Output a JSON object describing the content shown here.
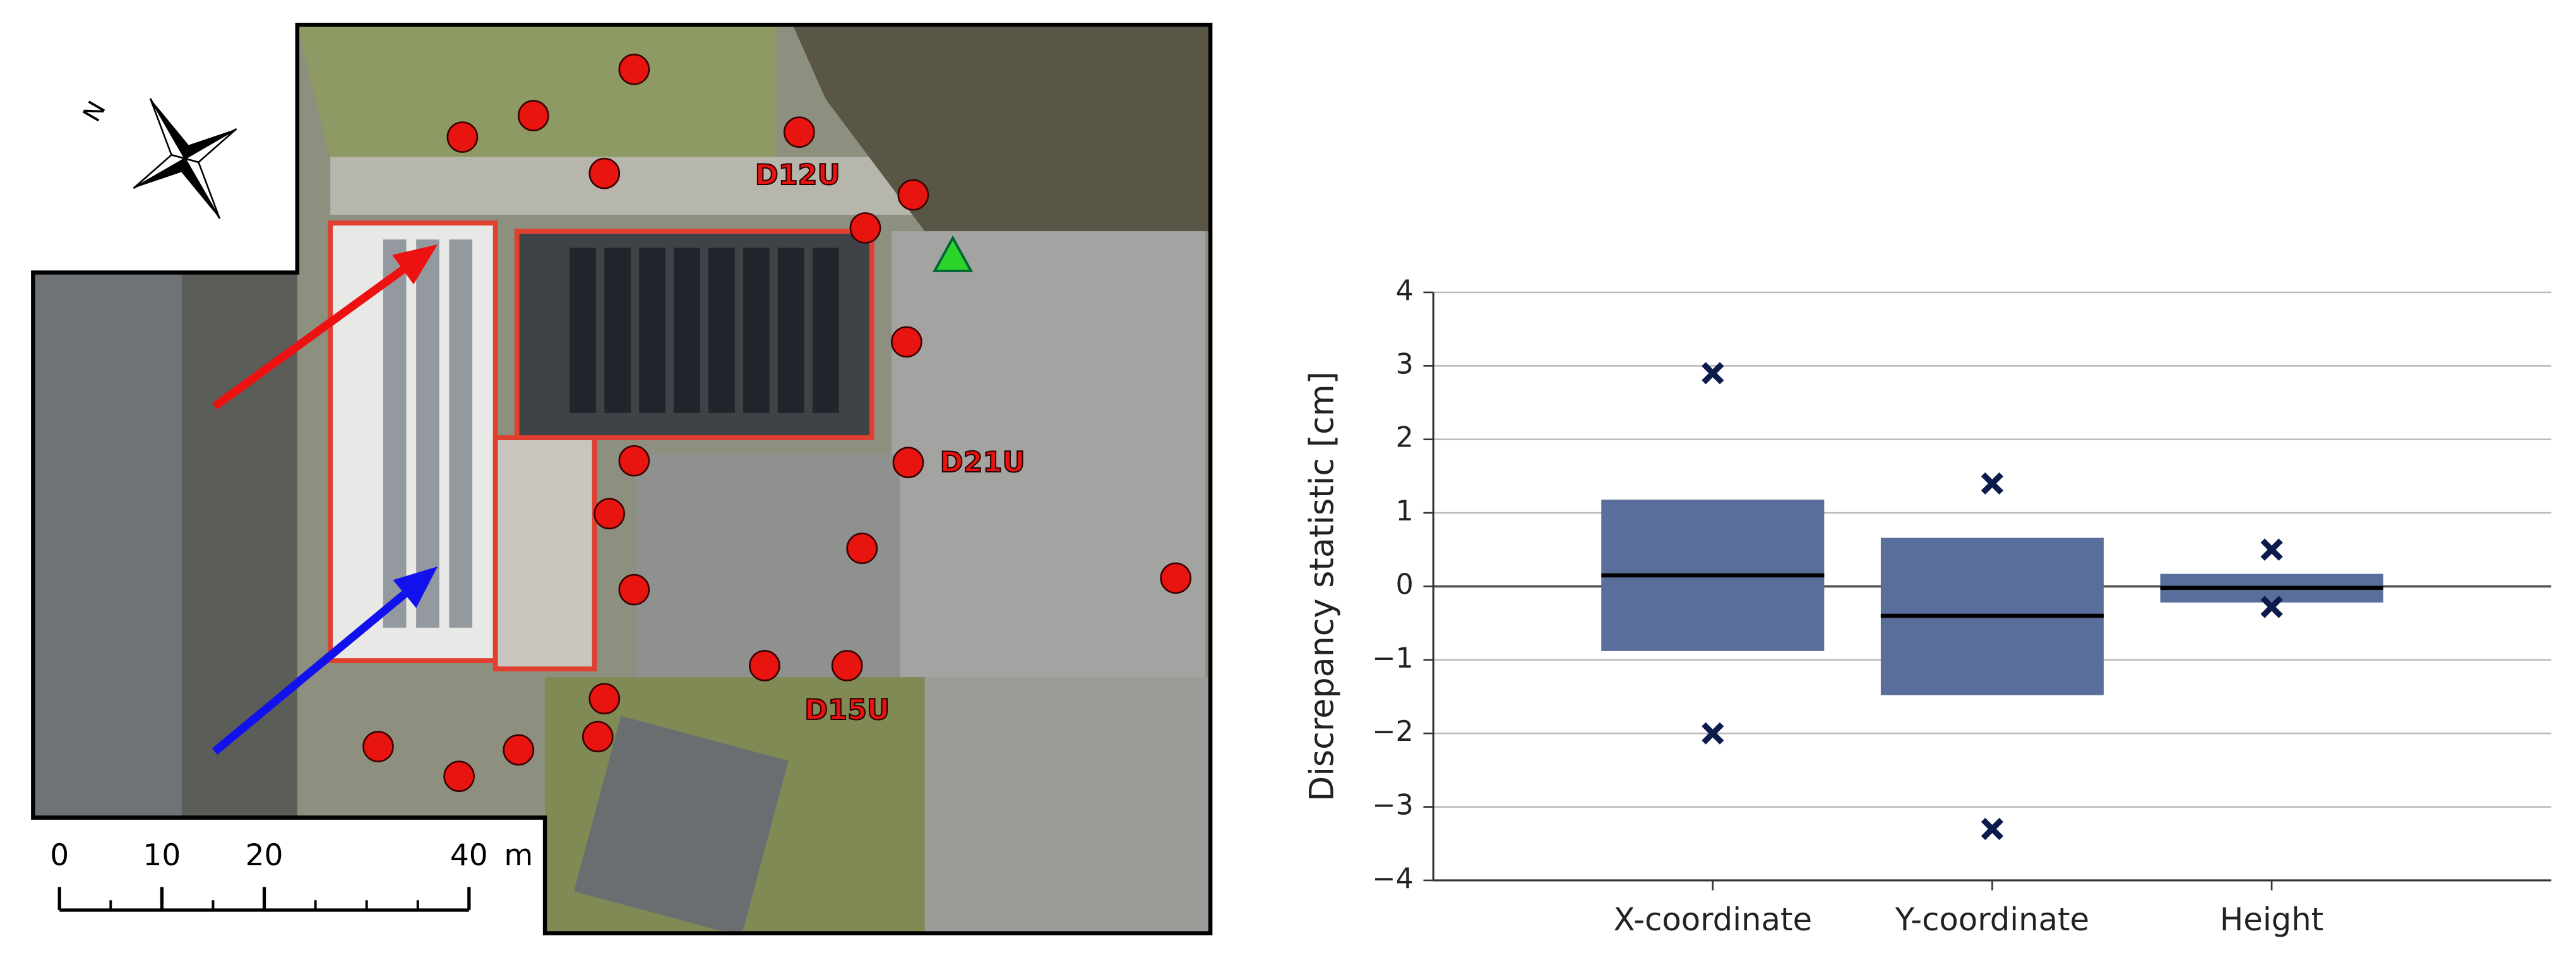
{
  "map": {
    "north": "N",
    "labels": [
      "D12U",
      "D21U",
      "D15U"
    ],
    "scale": {
      "ticks": [
        0,
        10,
        20,
        40
      ],
      "unit": "m"
    }
  },
  "chart_data": {
    "type": "box",
    "y_label": "Discrepancy statistic [cm]",
    "categories": [
      "X-coordinate",
      "Y-coordinate",
      "Height"
    ],
    "q1": [
      -0.88,
      -1.48,
      -0.22
    ],
    "median": [
      0.15,
      -0.4,
      -0.02
    ],
    "q3": [
      1.18,
      0.66,
      0.17
    ],
    "min": [
      -2.0,
      -3.3,
      -0.28
    ],
    "max": [
      2.9,
      1.4,
      0.5
    ],
    "color": "#5a6e9c",
    "marker_color": "#0d1b4c",
    "ylim": [
      -4,
      4
    ],
    "yticks": [
      {
        "value": -4,
        "label": "−4"
      },
      {
        "value": -3,
        "label": "−3"
      },
      {
        "value": -2,
        "label": "−2"
      },
      {
        "value": -1,
        "label": "−1"
      },
      0,
      1,
      2,
      3,
      4
    ],
    "grid": true
  }
}
